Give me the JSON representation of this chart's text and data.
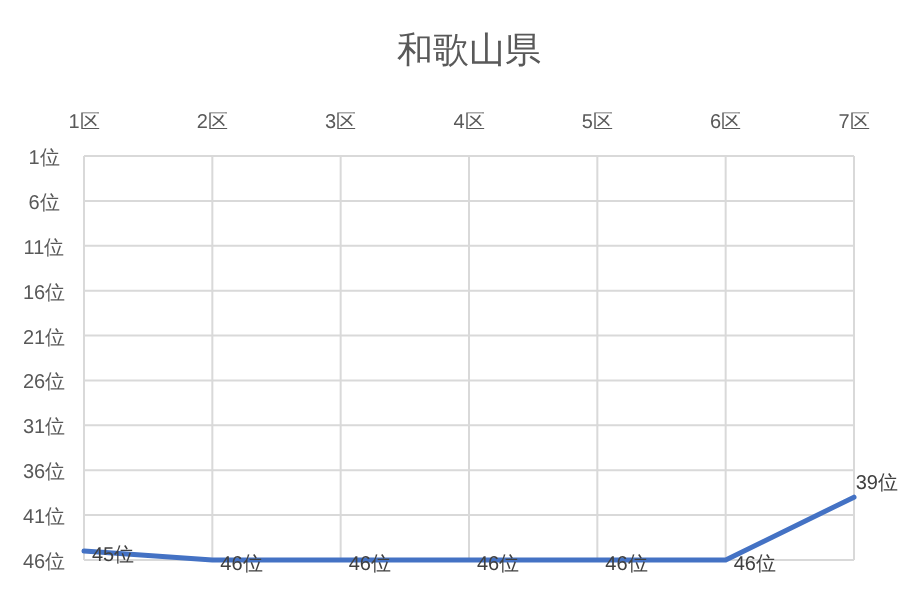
{
  "chart_data": {
    "type": "line",
    "title": "和歌山県",
    "categories": [
      "1区",
      "2区",
      "3区",
      "4区",
      "5区",
      "6区",
      "7区"
    ],
    "series": [
      {
        "color": "#4472c4",
        "values": [
          45,
          46,
          46,
          46,
          46,
          46,
          39
        ],
        "value_labels": [
          "45位",
          "46位",
          "46位",
          "46位",
          "46位",
          "46位",
          "39位"
        ]
      }
    ],
    "ylim": [
      46,
      1
    ],
    "yticks": [
      {
        "value": 1,
        "label": "1位"
      },
      {
        "value": 6,
        "label": "6位"
      },
      {
        "value": 11,
        "label": "11位"
      },
      {
        "value": 16,
        "label": "16位"
      },
      {
        "value": 21,
        "label": "21位"
      },
      {
        "value": 26,
        "label": "26位"
      },
      {
        "value": 31,
        "label": "31位"
      },
      {
        "value": 36,
        "label": "36位"
      },
      {
        "value": 41,
        "label": "41位"
      },
      {
        "value": 46,
        "label": "46位"
      }
    ],
    "grid": true,
    "marker": "none",
    "line_style": "solid"
  }
}
